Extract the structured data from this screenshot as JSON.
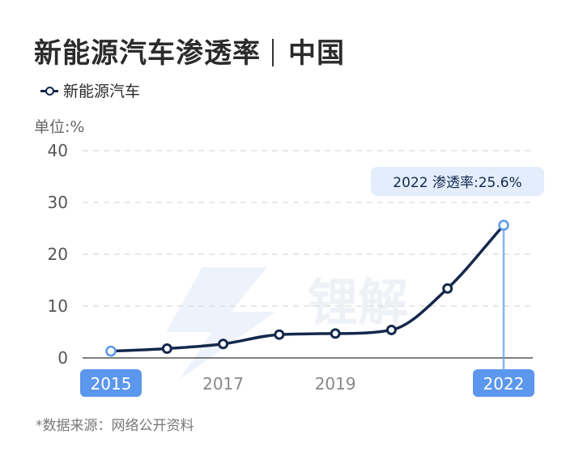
{
  "title": {
    "main": "新能源汽车渗透率",
    "region": "中国"
  },
  "unit_label": "单位:%",
  "source": "*数据来源：网络公开资料",
  "watermark": "锂解",
  "colors": {
    "line": "#14284b",
    "highlight": "#5b97ec",
    "callout_bg": "#e3edfb",
    "grid": "#d9d9d9"
  },
  "chart_data": {
    "type": "line",
    "legend_position": "top-left",
    "grid": true,
    "ylim": [
      0,
      40
    ],
    "yticks": [
      0,
      10,
      20,
      30,
      40
    ],
    "x": [
      2015,
      2016,
      2017,
      2018,
      2019,
      2020,
      2021,
      2022
    ],
    "xtick_labels": [
      "2015",
      "2017",
      "2019",
      "2022"
    ],
    "highlighted_x": [
      "2015",
      "2022"
    ],
    "series": [
      {
        "name": "新能源汽车",
        "values": [
          1.3,
          1.8,
          2.7,
          4.5,
          4.7,
          5.4,
          13.4,
          25.6
        ]
      }
    ],
    "annotation": {
      "x": 2022,
      "text": "2022 渗透率:25.6%"
    }
  }
}
